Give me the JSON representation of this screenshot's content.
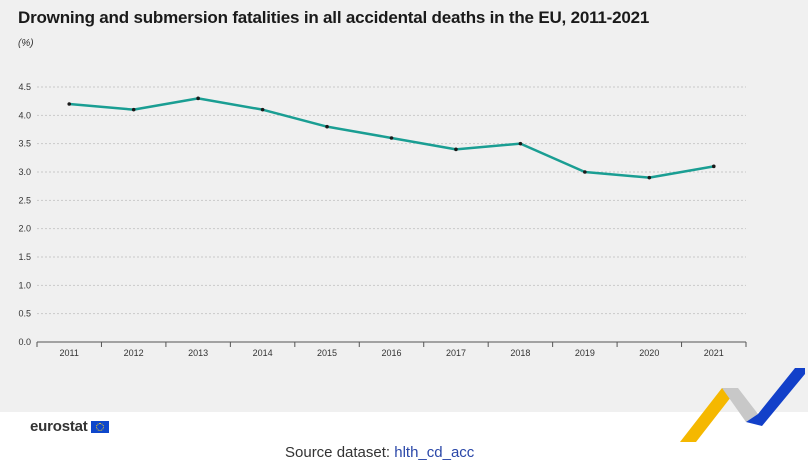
{
  "header": {
    "title": "Drowning and submersion fatalities in all accidental deaths in the EU, 2011-2021",
    "unit": "(%)"
  },
  "footer": {
    "logo_text": "eurostat",
    "source_prefix": "Source dataset: ",
    "source_code": "hlth_cd_acc"
  },
  "colors": {
    "line": "#1a9e93",
    "marker": "#1a1a1a",
    "grid": "#c9c9c9",
    "background": "#f0f0f0"
  },
  "chart_data": {
    "type": "line",
    "title": "Drowning and submersion fatalities in all accidental deaths in the EU, 2011-2021",
    "ylabel": "(%)",
    "xlabel": "",
    "categories": [
      "2011",
      "2012",
      "2013",
      "2014",
      "2015",
      "2016",
      "2017",
      "2018",
      "2019",
      "2020",
      "2021"
    ],
    "series": [
      {
        "values": [
          4.2,
          4.1,
          4.3,
          4.1,
          3.8,
          3.6,
          3.4,
          3.5,
          3.0,
          2.9,
          3.1
        ]
      }
    ],
    "ylim": [
      0,
      4.5
    ],
    "yticks": [
      "0.0",
      "0.5",
      "1.0",
      "1.5",
      "2.0",
      "2.5",
      "3.0",
      "3.5",
      "4.0",
      "4.5"
    ],
    "grid": true,
    "legend": "none"
  }
}
